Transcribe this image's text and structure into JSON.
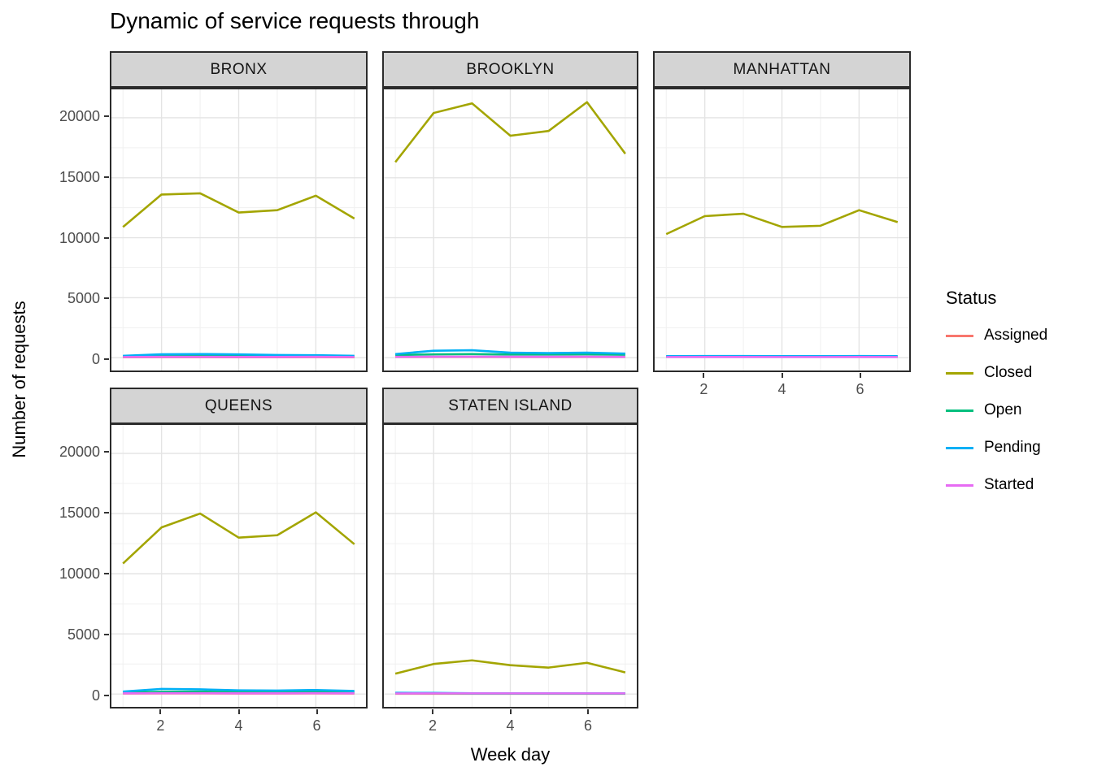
{
  "chart_data": {
    "type": "line",
    "title": "Dynamic of service requests through",
    "x_label": "Week day",
    "y_label": "Number of requests",
    "x": [
      1,
      2,
      3,
      4,
      5,
      6,
      7
    ],
    "x_ticks": [
      2,
      4,
      6
    ],
    "x_minor": [
      1,
      3,
      5,
      7
    ],
    "y_ticks": [
      0,
      5000,
      10000,
      15000,
      20000
    ],
    "y_minor": [
      2500,
      7500,
      12500,
      17500
    ],
    "x_range": [
      0.7,
      7.3
    ],
    "y_range": [
      -1065,
      22365
    ],
    "grid": true,
    "legend": {
      "title": "Status",
      "position": "right",
      "entries": [
        {
          "label": "Assigned",
          "color": "#F8766D"
        },
        {
          "label": "Closed",
          "color": "#A3A500"
        },
        {
          "label": "Open",
          "color": "#00BF7D"
        },
        {
          "label": "Pending",
          "color": "#00B0F6"
        },
        {
          "label": "Started",
          "color": "#E76BF3"
        }
      ]
    },
    "facets": [
      {
        "name": "BRONX",
        "series": [
          {
            "name": "Assigned",
            "values": [
              40,
              45,
              45,
              40,
              40,
              45,
              40
            ]
          },
          {
            "name": "Closed",
            "values": [
              10900,
              13600,
              13700,
              12100,
              12300,
              13500,
              11600
            ]
          },
          {
            "name": "Open",
            "values": [
              120,
              170,
              190,
              170,
              150,
              140,
              110
            ]
          },
          {
            "name": "Pending",
            "values": [
              160,
              290,
              310,
              280,
              230,
              210,
              160
            ]
          },
          {
            "name": "Started",
            "values": [
              60,
              70,
              70,
              65,
              65,
              70,
              60
            ]
          }
        ]
      },
      {
        "name": "BROOKLYN",
        "series": [
          {
            "name": "Assigned",
            "values": [
              60,
              70,
              70,
              65,
              65,
              70,
              60
            ]
          },
          {
            "name": "Closed",
            "values": [
              16300,
              20400,
              21200,
              18500,
              18900,
              21300,
              17000
            ]
          },
          {
            "name": "Open",
            "values": [
              230,
              280,
              300,
              270,
              270,
              290,
              250
            ]
          },
          {
            "name": "Pending",
            "values": [
              310,
              580,
              620,
              420,
              390,
              420,
              350
            ]
          },
          {
            "name": "Started",
            "values": [
              75,
              85,
              85,
              80,
              80,
              85,
              75
            ]
          }
        ]
      },
      {
        "name": "MANHATTAN",
        "series": [
          {
            "name": "Assigned",
            "values": [
              95,
              100,
              100,
              95,
              95,
              100,
              95
            ]
          },
          {
            "name": "Closed",
            "values": [
              10300,
              11800,
              12000,
              10900,
              11000,
              12300,
              11300
            ]
          },
          {
            "name": "Open",
            "values": [
              85,
              90,
              90,
              85,
              85,
              90,
              85
            ]
          },
          {
            "name": "Pending",
            "values": [
              130,
              140,
              140,
              135,
              135,
              140,
              130
            ]
          },
          {
            "name": "Started",
            "values": [
              60,
              65,
              65,
              60,
              60,
              65,
              60
            ]
          }
        ]
      },
      {
        "name": "QUEENS",
        "series": [
          {
            "name": "Assigned",
            "values": [
              45,
              50,
              50,
              45,
              45,
              50,
              45
            ]
          },
          {
            "name": "Closed",
            "values": [
              10850,
              13850,
              15000,
              13000,
              13200,
              15100,
              12450
            ]
          },
          {
            "name": "Open",
            "values": [
              140,
              190,
              200,
              170,
              160,
              170,
              130
            ]
          },
          {
            "name": "Pending",
            "values": [
              210,
              430,
              390,
              310,
              290,
              340,
              260
            ]
          },
          {
            "name": "Started",
            "values": [
              60,
              70,
              70,
              65,
              65,
              70,
              60
            ]
          }
        ]
      },
      {
        "name": "STATEN ISLAND",
        "series": [
          {
            "name": "Assigned",
            "values": [
              30,
              30,
              30,
              30,
              30,
              30,
              30
            ]
          },
          {
            "name": "Closed",
            "values": [
              1700,
              2500,
              2800,
              2400,
              2200,
              2600,
              1800
            ]
          },
          {
            "name": "Open",
            "values": [
              60,
              55,
              45,
              45,
              45,
              45,
              45
            ]
          },
          {
            "name": "Pending",
            "values": [
              100,
              95,
              60,
              60,
              60,
              60,
              60
            ]
          },
          {
            "name": "Started",
            "values": [
              50,
              58,
              58,
              55,
              55,
              58,
              55
            ]
          }
        ]
      }
    ],
    "colors": {
      "strip_bg": "#D4D4D4",
      "panel_border": "#2b2b2b",
      "grid_major": "#E4E4E4",
      "grid_minor": "#F0F0F0",
      "axis_text": "#4d4d4d"
    }
  }
}
